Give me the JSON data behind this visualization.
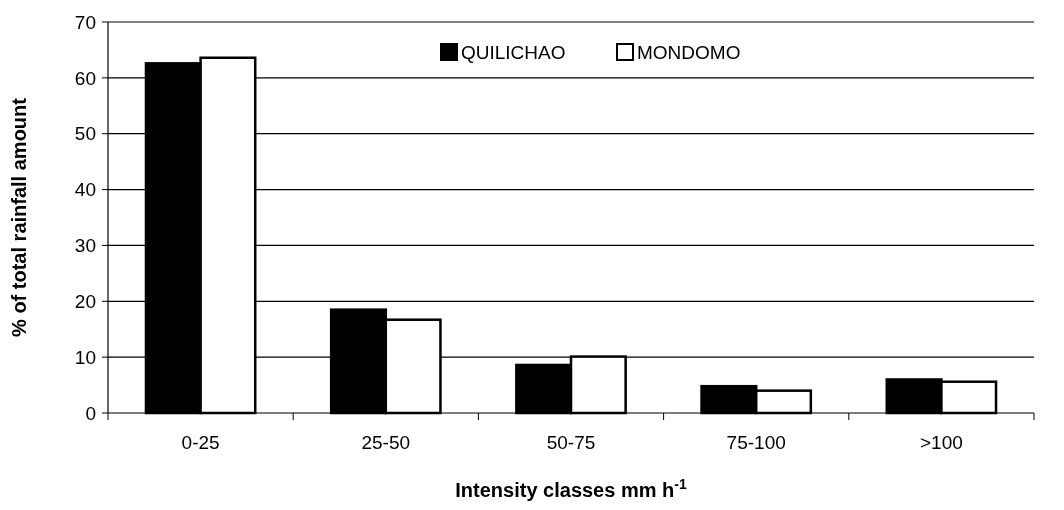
{
  "chart_data": {
    "type": "bar",
    "xlabel": "Intensity classes mm h$^{-1}$",
    "ylabel": "% of total rainfall amount",
    "categories": [
      "0-25",
      "25-50",
      "50-75",
      "75-100",
      ">100"
    ],
    "series": [
      {
        "name": "QUILICHAO",
        "color": "#000000",
        "values": [
          62.6,
          18.5,
          8.6,
          4.8,
          6.0
        ]
      },
      {
        "name": "MONDOMO",
        "color": "#ffffff",
        "values": [
          63.6,
          16.7,
          10.1,
          4.0,
          5.6
        ]
      }
    ],
    "ylim": [
      0,
      70
    ],
    "yticks": [
      0,
      10,
      20,
      30,
      40,
      50,
      60,
      70
    ],
    "grid": "y",
    "legend": "top"
  }
}
